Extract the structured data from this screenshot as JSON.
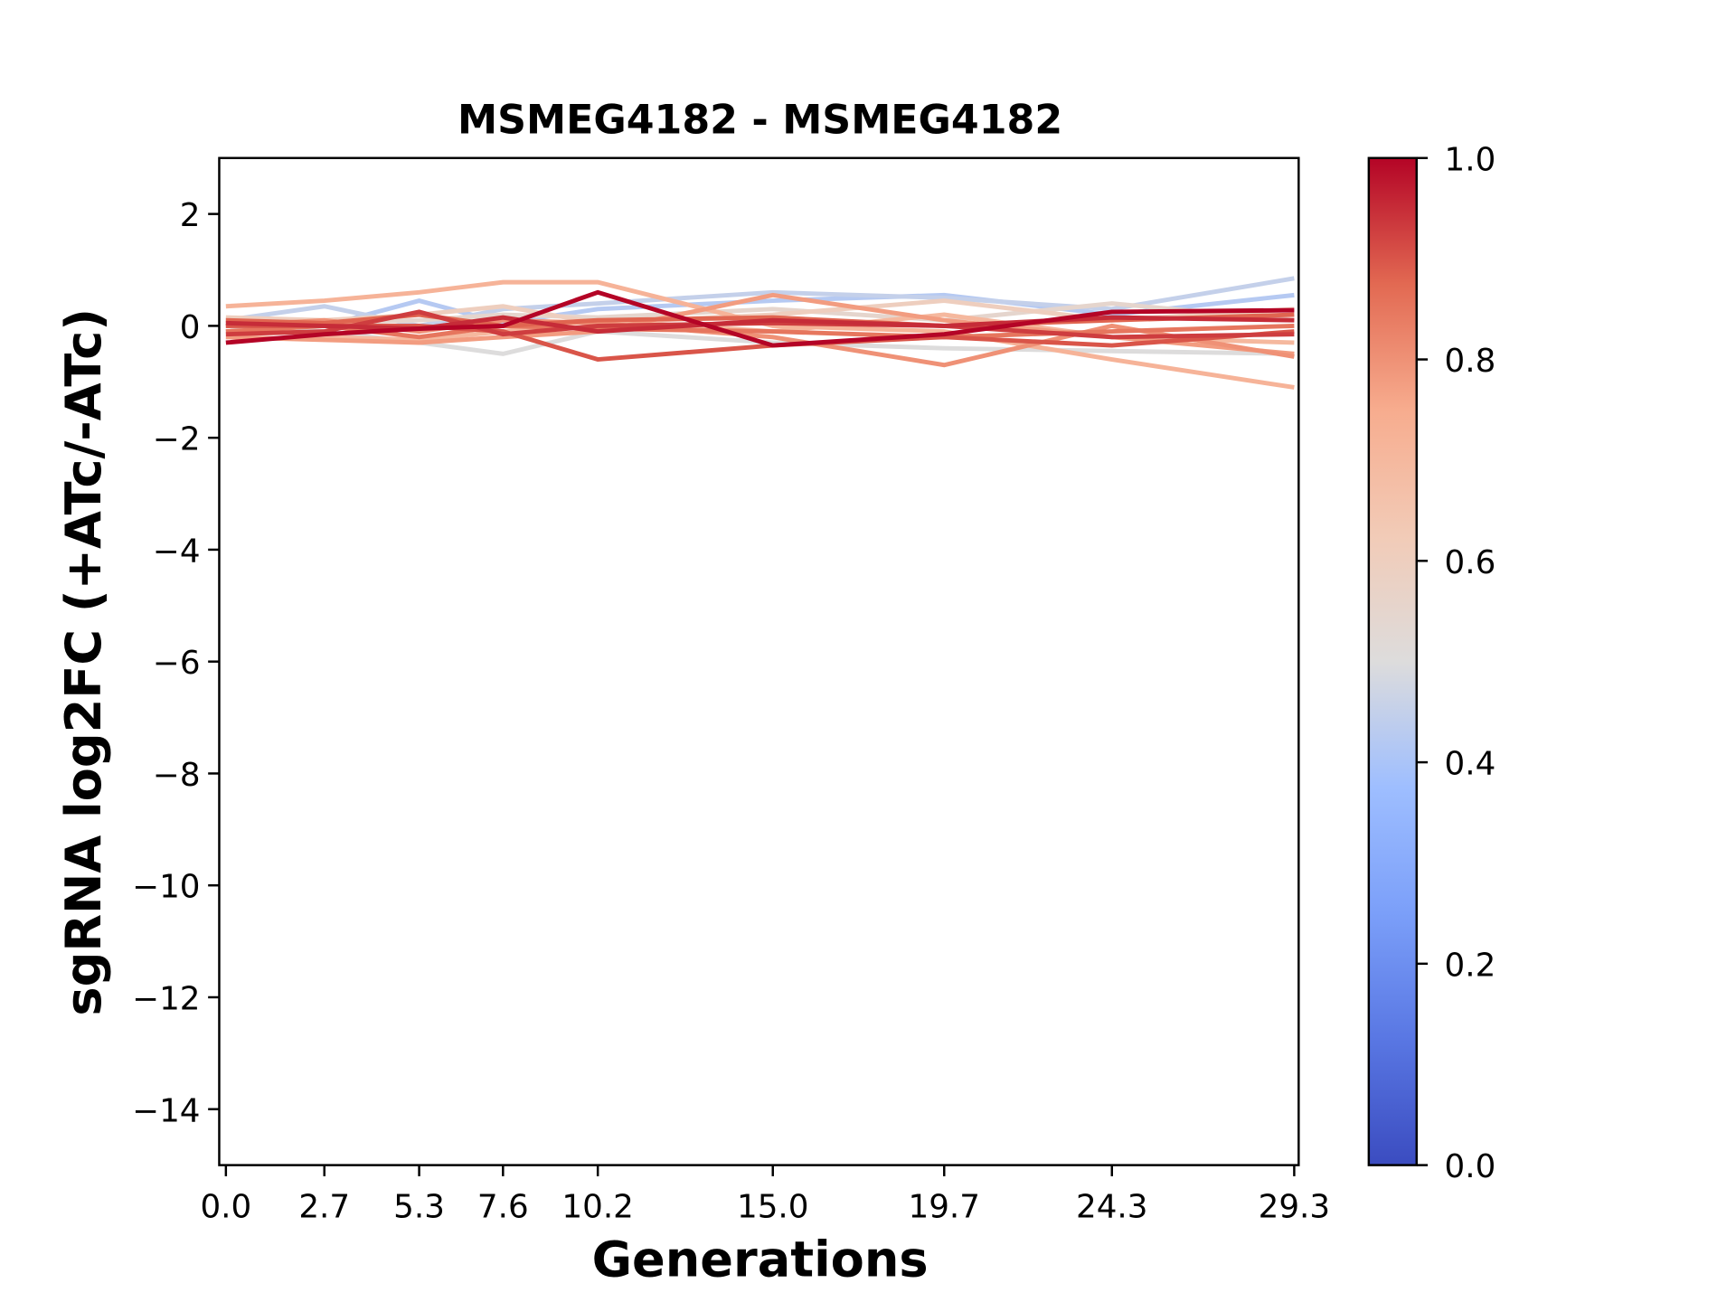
{
  "chart_data": {
    "type": "line",
    "title": "MSMEG4182 - MSMEG4182",
    "xlabel": "Generations",
    "ylabel": "sgRNA log2FC (+ATc/-ATc)",
    "x": [
      0.0,
      2.7,
      5.3,
      7.6,
      10.2,
      15.0,
      19.7,
      24.3,
      29.3
    ],
    "xtick_labels": [
      "0.0",
      "2.7",
      "5.3",
      "7.6",
      "10.2",
      "15.0",
      "19.7",
      "24.3",
      "29.3"
    ],
    "ylim": [
      -15,
      3
    ],
    "yticks": [
      2,
      0,
      -2,
      -4,
      -6,
      -8,
      -10,
      -12,
      -14
    ],
    "ytick_labels": [
      "2",
      "0",
      "−2",
      "−4",
      "−6",
      "−8",
      "−10",
      "−12",
      "−14"
    ],
    "grid": false,
    "colormap": "coolwarm",
    "colorbar": {
      "range": [
        0,
        1
      ],
      "ticks": [
        "0.0",
        "0.2",
        "0.4",
        "0.6",
        "0.8",
        "1.0"
      ]
    },
    "series": [
      {
        "c": 0.45,
        "values": [
          0.1,
          0.35,
          0.0,
          0.3,
          0.4,
          0.6,
          0.5,
          0.3,
          0.85
        ]
      },
      {
        "c": 0.42,
        "values": [
          0.05,
          0.0,
          0.45,
          0.05,
          0.3,
          0.45,
          0.55,
          0.2,
          0.55
        ]
      },
      {
        "c": 0.5,
        "values": [
          0.0,
          -0.1,
          -0.3,
          -0.5,
          -0.1,
          -0.3,
          -0.4,
          -0.45,
          -0.5
        ]
      },
      {
        "c": 0.6,
        "values": [
          0.15,
          0.1,
          0.2,
          0.35,
          0.05,
          0.2,
          0.45,
          0.1,
          0.3
        ]
      },
      {
        "c": 0.55,
        "values": [
          -0.1,
          0.05,
          0.1,
          0.2,
          0.15,
          0.3,
          0.1,
          0.4,
          0.1
        ]
      },
      {
        "c": 0.72,
        "values": [
          0.35,
          0.45,
          0.6,
          0.78,
          0.78,
          0.0,
          -0.1,
          -0.6,
          -1.1
        ]
      },
      {
        "c": 0.7,
        "values": [
          0.1,
          -0.2,
          -0.25,
          -0.1,
          0.1,
          -0.1,
          0.2,
          -0.2,
          -0.3
        ]
      },
      {
        "c": 0.78,
        "values": [
          -0.2,
          -0.25,
          -0.3,
          -0.2,
          -0.1,
          0.55,
          0.1,
          -0.2,
          -0.5
        ]
      },
      {
        "c": 0.8,
        "values": [
          0.0,
          0.1,
          -0.1,
          0.1,
          0.05,
          -0.2,
          -0.7,
          0.0,
          -0.55
        ]
      },
      {
        "c": 0.85,
        "values": [
          -0.1,
          0.0,
          -0.2,
          0.0,
          -0.05,
          -0.1,
          -0.2,
          -0.1,
          0.0
        ]
      },
      {
        "c": 0.88,
        "values": [
          0.1,
          0.05,
          0.2,
          0.0,
          0.1,
          0.15,
          0.0,
          0.1,
          0.2
        ]
      },
      {
        "c": 0.9,
        "values": [
          0.0,
          0.0,
          0.0,
          -0.1,
          -0.6,
          -0.35,
          -0.2,
          -0.35,
          -0.1
        ]
      },
      {
        "c": 0.93,
        "values": [
          -0.15,
          -0.1,
          0.25,
          -0.15,
          0.0,
          0.05,
          0.0,
          -0.2,
          -0.15
        ]
      },
      {
        "c": 0.95,
        "values": [
          0.05,
          0.0,
          -0.05,
          0.15,
          -0.1,
          0.1,
          0.0,
          0.15,
          0.1
        ]
      },
      {
        "c": 1.0,
        "values": [
          -0.3,
          -0.15,
          -0.05,
          0.0,
          0.6,
          -0.35,
          -0.15,
          0.25,
          0.28
        ]
      }
    ]
  }
}
